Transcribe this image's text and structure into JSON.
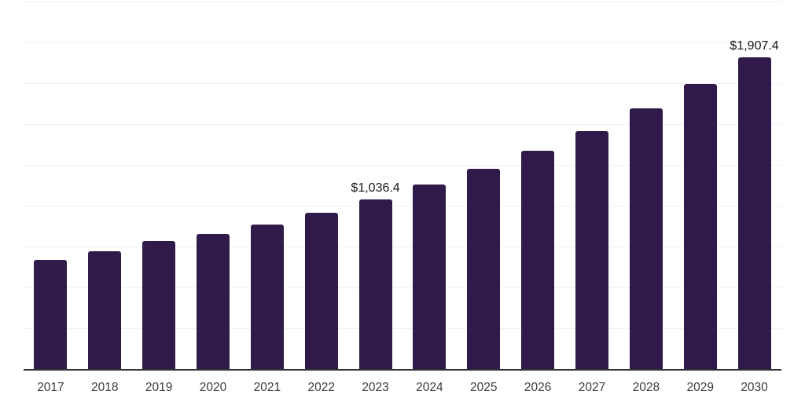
{
  "chart_data": {
    "type": "bar",
    "categories": [
      "2017",
      "2018",
      "2019",
      "2020",
      "2021",
      "2022",
      "2023",
      "2024",
      "2025",
      "2026",
      "2027",
      "2028",
      "2029",
      "2030"
    ],
    "values": [
      670,
      722,
      783,
      826,
      886,
      959,
      1036.4,
      1130,
      1228,
      1336,
      1459,
      1595,
      1744,
      1907.4
    ],
    "value_labels": [
      "",
      "",
      "",
      "",
      "",
      "",
      "$1,036.4",
      "",
      "",
      "",
      "",
      "",
      "",
      "$1,907.4"
    ],
    "ylim": [
      0,
      2250
    ],
    "gridline_interval": 250,
    "grid": "horizontal",
    "legend": "none",
    "y_tick_labels_visible": false,
    "colors": {
      "bar": "#301a4a",
      "axis_line": "#333333",
      "gridline": "#f0f1f4",
      "value_label_text": "#161616",
      "tick_label_text": "#3c3c3c",
      "background": "#ffffff"
    }
  }
}
